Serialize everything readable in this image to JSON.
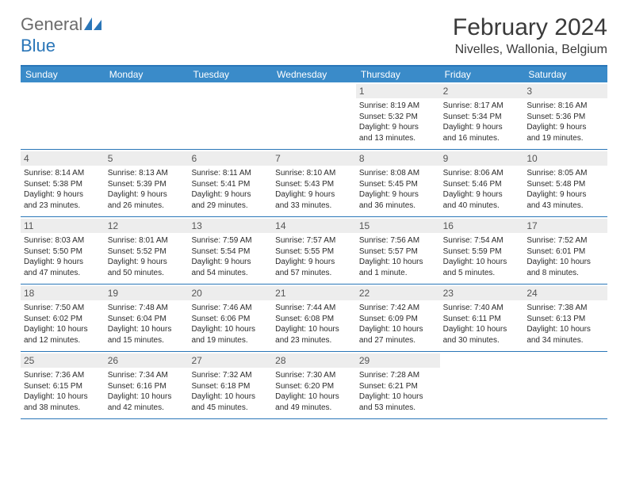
{
  "brand": {
    "part1": "General",
    "part2": "Blue"
  },
  "title": "February 2024",
  "location": "Nivelles, Wallonia, Belgium",
  "colors": {
    "header_bg": "#3a8bc9",
    "border": "#2a76b8",
    "daynum_bg": "#ededed",
    "text": "#2b2b2b",
    "logo_blue": "#2a76b8",
    "logo_gray": "#6b6b6b"
  },
  "day_names": [
    "Sunday",
    "Monday",
    "Tuesday",
    "Wednesday",
    "Thursday",
    "Friday",
    "Saturday"
  ],
  "weeks": [
    [
      {
        "n": "",
        "lines": []
      },
      {
        "n": "",
        "lines": []
      },
      {
        "n": "",
        "lines": []
      },
      {
        "n": "",
        "lines": []
      },
      {
        "n": "1",
        "lines": [
          "Sunrise: 8:19 AM",
          "Sunset: 5:32 PM",
          "Daylight: 9 hours and 13 minutes."
        ]
      },
      {
        "n": "2",
        "lines": [
          "Sunrise: 8:17 AM",
          "Sunset: 5:34 PM",
          "Daylight: 9 hours and 16 minutes."
        ]
      },
      {
        "n": "3",
        "lines": [
          "Sunrise: 8:16 AM",
          "Sunset: 5:36 PM",
          "Daylight: 9 hours and 19 minutes."
        ]
      }
    ],
    [
      {
        "n": "4",
        "lines": [
          "Sunrise: 8:14 AM",
          "Sunset: 5:38 PM",
          "Daylight: 9 hours and 23 minutes."
        ]
      },
      {
        "n": "5",
        "lines": [
          "Sunrise: 8:13 AM",
          "Sunset: 5:39 PM",
          "Daylight: 9 hours and 26 minutes."
        ]
      },
      {
        "n": "6",
        "lines": [
          "Sunrise: 8:11 AM",
          "Sunset: 5:41 PM",
          "Daylight: 9 hours and 29 minutes."
        ]
      },
      {
        "n": "7",
        "lines": [
          "Sunrise: 8:10 AM",
          "Sunset: 5:43 PM",
          "Daylight: 9 hours and 33 minutes."
        ]
      },
      {
        "n": "8",
        "lines": [
          "Sunrise: 8:08 AM",
          "Sunset: 5:45 PM",
          "Daylight: 9 hours and 36 minutes."
        ]
      },
      {
        "n": "9",
        "lines": [
          "Sunrise: 8:06 AM",
          "Sunset: 5:46 PM",
          "Daylight: 9 hours and 40 minutes."
        ]
      },
      {
        "n": "10",
        "lines": [
          "Sunrise: 8:05 AM",
          "Sunset: 5:48 PM",
          "Daylight: 9 hours and 43 minutes."
        ]
      }
    ],
    [
      {
        "n": "11",
        "lines": [
          "Sunrise: 8:03 AM",
          "Sunset: 5:50 PM",
          "Daylight: 9 hours and 47 minutes."
        ]
      },
      {
        "n": "12",
        "lines": [
          "Sunrise: 8:01 AM",
          "Sunset: 5:52 PM",
          "Daylight: 9 hours and 50 minutes."
        ]
      },
      {
        "n": "13",
        "lines": [
          "Sunrise: 7:59 AM",
          "Sunset: 5:54 PM",
          "Daylight: 9 hours and 54 minutes."
        ]
      },
      {
        "n": "14",
        "lines": [
          "Sunrise: 7:57 AM",
          "Sunset: 5:55 PM",
          "Daylight: 9 hours and 57 minutes."
        ]
      },
      {
        "n": "15",
        "lines": [
          "Sunrise: 7:56 AM",
          "Sunset: 5:57 PM",
          "Daylight: 10 hours and 1 minute."
        ]
      },
      {
        "n": "16",
        "lines": [
          "Sunrise: 7:54 AM",
          "Sunset: 5:59 PM",
          "Daylight: 10 hours and 5 minutes."
        ]
      },
      {
        "n": "17",
        "lines": [
          "Sunrise: 7:52 AM",
          "Sunset: 6:01 PM",
          "Daylight: 10 hours and 8 minutes."
        ]
      }
    ],
    [
      {
        "n": "18",
        "lines": [
          "Sunrise: 7:50 AM",
          "Sunset: 6:02 PM",
          "Daylight: 10 hours and 12 minutes."
        ]
      },
      {
        "n": "19",
        "lines": [
          "Sunrise: 7:48 AM",
          "Sunset: 6:04 PM",
          "Daylight: 10 hours and 15 minutes."
        ]
      },
      {
        "n": "20",
        "lines": [
          "Sunrise: 7:46 AM",
          "Sunset: 6:06 PM",
          "Daylight: 10 hours and 19 minutes."
        ]
      },
      {
        "n": "21",
        "lines": [
          "Sunrise: 7:44 AM",
          "Sunset: 6:08 PM",
          "Daylight: 10 hours and 23 minutes."
        ]
      },
      {
        "n": "22",
        "lines": [
          "Sunrise: 7:42 AM",
          "Sunset: 6:09 PM",
          "Daylight: 10 hours and 27 minutes."
        ]
      },
      {
        "n": "23",
        "lines": [
          "Sunrise: 7:40 AM",
          "Sunset: 6:11 PM",
          "Daylight: 10 hours and 30 minutes."
        ]
      },
      {
        "n": "24",
        "lines": [
          "Sunrise: 7:38 AM",
          "Sunset: 6:13 PM",
          "Daylight: 10 hours and 34 minutes."
        ]
      }
    ],
    [
      {
        "n": "25",
        "lines": [
          "Sunrise: 7:36 AM",
          "Sunset: 6:15 PM",
          "Daylight: 10 hours and 38 minutes."
        ]
      },
      {
        "n": "26",
        "lines": [
          "Sunrise: 7:34 AM",
          "Sunset: 6:16 PM",
          "Daylight: 10 hours and 42 minutes."
        ]
      },
      {
        "n": "27",
        "lines": [
          "Sunrise: 7:32 AM",
          "Sunset: 6:18 PM",
          "Daylight: 10 hours and 45 minutes."
        ]
      },
      {
        "n": "28",
        "lines": [
          "Sunrise: 7:30 AM",
          "Sunset: 6:20 PM",
          "Daylight: 10 hours and 49 minutes."
        ]
      },
      {
        "n": "29",
        "lines": [
          "Sunrise: 7:28 AM",
          "Sunset: 6:21 PM",
          "Daylight: 10 hours and 53 minutes."
        ]
      },
      {
        "n": "",
        "lines": []
      },
      {
        "n": "",
        "lines": []
      }
    ]
  ]
}
